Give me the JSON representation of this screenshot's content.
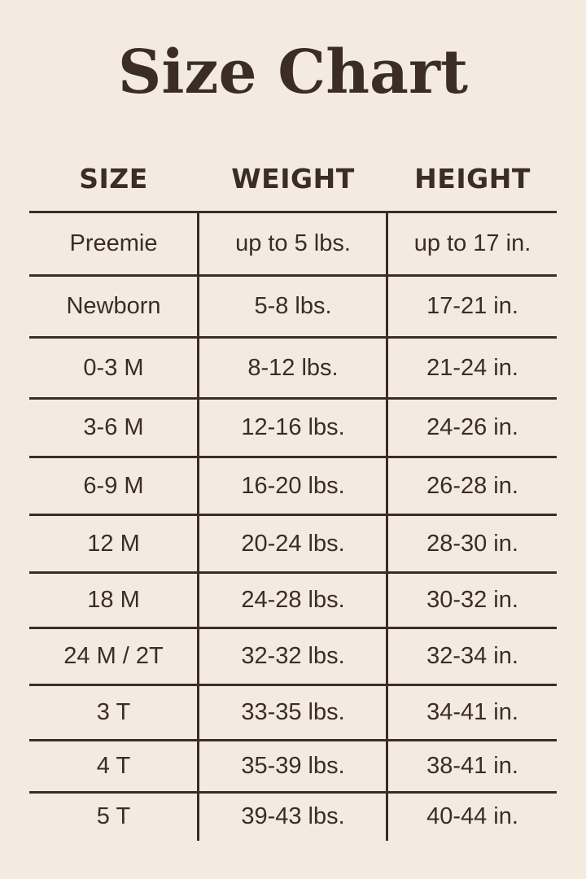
{
  "title": "Size Chart",
  "columns": [
    "SIZE",
    "WEIGHT",
    "HEIGHT"
  ],
  "rows": [
    [
      "Preemie",
      "up to 5 lbs.",
      "up to 17 in."
    ],
    [
      "Newborn",
      "5-8 lbs.",
      "17-21 in."
    ],
    [
      "0-3 M",
      "8-12 lbs.",
      "21-24 in."
    ],
    [
      "3-6 M",
      "12-16 lbs.",
      "24-26 in."
    ],
    [
      "6-9 M",
      "16-20 lbs.",
      "26-28 in."
    ],
    [
      "12 M",
      "20-24 lbs.",
      "28-30 in."
    ],
    [
      "18 M",
      "24-28 lbs.",
      "30-32 in."
    ],
    [
      "24 M / 2T",
      "32-32 lbs.",
      "32-34 in."
    ],
    [
      "3 T",
      "33-35 lbs.",
      "34-41 in."
    ],
    [
      "4 T",
      "35-39 lbs.",
      "38-41 in."
    ],
    [
      "5 T",
      "39-43 lbs.",
      "40-44 in."
    ]
  ],
  "colors": {
    "background": "#f3ebe0",
    "text": "#3b2d24"
  }
}
